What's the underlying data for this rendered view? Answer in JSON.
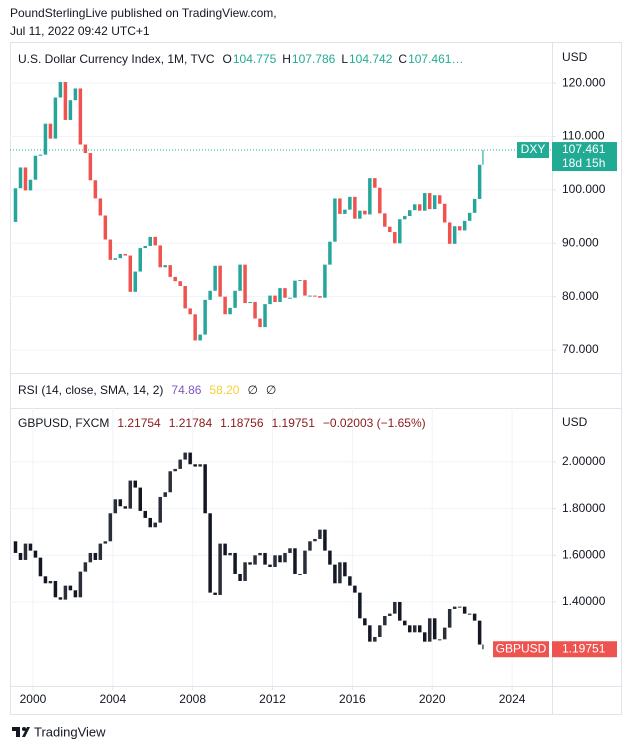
{
  "header": {
    "publisher": "PoundSterlingLive published on TradingView.com,",
    "date": "Jul 11, 2022 09:42 UTC+1"
  },
  "footer": {
    "brand": "TradingView"
  },
  "rsi": {
    "label": "RSI (14, close, SMA, 14, 2)",
    "value": 74.86,
    "sma": {
      "value": 58.2,
      "label": "58.20"
    },
    "extras": [
      "∅",
      "∅"
    ]
  },
  "chart_data": [
    {
      "type": "candlestick",
      "title": "U.S. Dollar Currency Index, 1M, TVC",
      "currency": "USD",
      "ohlc": [
        {
          "key": "O",
          "value": 104.775
        },
        {
          "key": "H",
          "value": 107.786
        },
        {
          "key": "L",
          "value": 104.742
        },
        {
          "key": "C",
          "value": 107.461
        }
      ],
      "truncation": "…",
      "x": [
        1999,
        1999.25,
        1999.5,
        1999.75,
        2000,
        2000.25,
        2000.5,
        2000.75,
        2001,
        2001.25,
        2001.5,
        2001.75,
        2002,
        2002.25,
        2002.5,
        2002.75,
        2003,
        2003.25,
        2003.5,
        2003.75,
        2004,
        2004.25,
        2004.5,
        2004.75,
        2005,
        2005.25,
        2005.5,
        2005.75,
        2006,
        2006.25,
        2006.5,
        2006.75,
        2007,
        2007.25,
        2007.5,
        2007.75,
        2008,
        2008.25,
        2008.5,
        2008.75,
        2009,
        2009.25,
        2009.5,
        2009.75,
        2010,
        2010.25,
        2010.5,
        2010.75,
        2011,
        2011.25,
        2011.5,
        2011.75,
        2012,
        2012.25,
        2012.5,
        2012.75,
        2013,
        2013.25,
        2013.5,
        2013.75,
        2014,
        2014.25,
        2014.5,
        2014.75,
        2015,
        2015.25,
        2015.5,
        2015.75,
        2016,
        2016.25,
        2016.5,
        2016.75,
        2017,
        2017.25,
        2017.5,
        2017.75,
        2018,
        2018.25,
        2018.5,
        2018.75,
        2019,
        2019.25,
        2019.5,
        2019.75,
        2020,
        2020.25,
        2020.5,
        2020.75,
        2021,
        2021.25,
        2021.5,
        2021.75,
        2022,
        2022.25,
        2022.5,
        2022.58
      ],
      "values": [
        94,
        100.3,
        104.2,
        99.9,
        101.9,
        106.4,
        106.6,
        112.4,
        109.6,
        117.3,
        120.2,
        113.1,
        116.8,
        119.0,
        108.5,
        106.9,
        101.8,
        98.4,
        95.2,
        90.7,
        86.9,
        87.2,
        88.0,
        87.7,
        80.9,
        84.7,
        89.1,
        89.5,
        91.2,
        89.6,
        85.5,
        85.9,
        83.7,
        82.9,
        82.0,
        77.8,
        76.7,
        71.8,
        72.9,
        79.4,
        81.1,
        85.8,
        80.0,
        76.7,
        77.9,
        81.1,
        86.0,
        78.8,
        79.0,
        75.9,
        74.3,
        78.6,
        80.2,
        79.0,
        81.6,
        79.8,
        79.8,
        83.0,
        83.1,
        80.2,
        80.2,
        80.1,
        79.8,
        86.0,
        90.3,
        98.4,
        95.5,
        96.3,
        98.7,
        94.6,
        96.1,
        95.4,
        102.2,
        100.4,
        95.6,
        93.1,
        92.1,
        90.0,
        94.5,
        95.1,
        96.2,
        97.3,
        96.1,
        99.4,
        96.4,
        99.0,
        97.4,
        93.9,
        89.9,
        93.2,
        92.4,
        94.2,
        95.7,
        98.3,
        104.7,
        107.461
      ],
      "up_color": "#26a69a",
      "down_color": "#ef5350",
      "legend_color": "#22ab94",
      "xlim": [
        1998.85,
        2026.0
      ],
      "ylim": [
        65.7,
        127.7
      ],
      "yticks": [
        {
          "value": 70,
          "label": "70.000"
        },
        {
          "value": 80,
          "label": "80.000"
        },
        {
          "value": 90,
          "label": "90.000"
        },
        {
          "value": 100,
          "label": "100.000"
        },
        {
          "value": 110,
          "label": "110.000"
        },
        {
          "value": 120,
          "label": "120.000"
        }
      ],
      "grid": true,
      "last": {
        "symbol": "DXY",
        "value": 107.461,
        "countdown": "18d 15h",
        "color": "#22ab94",
        "line": true
      }
    },
    {
      "type": "candlestick",
      "title": "GBPUSD, FXCM",
      "currency": "USD",
      "ohlc": [
        {
          "value": 1.21754
        },
        {
          "value": 1.21784
        },
        {
          "value": 1.18756
        },
        {
          "value": 1.19751
        }
      ],
      "change": "−0.02003 (−1.65%)",
      "x": [
        1999,
        1999.25,
        1999.5,
        1999.75,
        2000,
        2000.25,
        2000.5,
        2000.75,
        2001,
        2001.25,
        2001.5,
        2001.75,
        2002,
        2002.25,
        2002.5,
        2002.75,
        2003,
        2003.25,
        2003.5,
        2003.75,
        2004,
        2004.25,
        2004.5,
        2004.75,
        2005,
        2005.25,
        2005.5,
        2005.75,
        2006,
        2006.25,
        2006.5,
        2006.75,
        2007,
        2007.25,
        2007.5,
        2007.75,
        2008,
        2008.25,
        2008.5,
        2008.75,
        2009,
        2009.25,
        2009.5,
        2009.75,
        2010,
        2010.25,
        2010.5,
        2010.75,
        2011,
        2011.25,
        2011.5,
        2011.75,
        2012,
        2012.25,
        2012.5,
        2012.75,
        2013,
        2013.25,
        2013.5,
        2013.75,
        2014,
        2014.25,
        2014.5,
        2014.75,
        2015,
        2015.25,
        2015.5,
        2015.75,
        2016,
        2016.25,
        2016.5,
        2016.75,
        2017,
        2017.25,
        2017.5,
        2017.75,
        2018,
        2018.25,
        2018.5,
        2018.75,
        2019,
        2019.25,
        2019.5,
        2019.75,
        2020,
        2020.25,
        2020.5,
        2020.75,
        2021,
        2021.25,
        2021.5,
        2021.75,
        2022,
        2022.25,
        2022.5,
        2022.58
      ],
      "values": [
        1.66,
        1.61,
        1.58,
        1.65,
        1.62,
        1.59,
        1.51,
        1.48,
        1.49,
        1.42,
        1.41,
        1.47,
        1.45,
        1.42,
        1.53,
        1.57,
        1.61,
        1.58,
        1.65,
        1.66,
        1.78,
        1.84,
        1.81,
        1.8,
        1.92,
        1.89,
        1.79,
        1.76,
        1.72,
        1.74,
        1.85,
        1.87,
        1.96,
        1.97,
        2.01,
        2.04,
        1.99,
        1.98,
        1.99,
        1.78,
        1.44,
        1.43,
        1.65,
        1.6,
        1.61,
        1.52,
        1.49,
        1.57,
        1.56,
        1.6,
        1.61,
        1.56,
        1.55,
        1.6,
        1.57,
        1.61,
        1.63,
        1.52,
        1.52,
        1.62,
        1.66,
        1.67,
        1.71,
        1.62,
        1.56,
        1.48,
        1.57,
        1.51,
        1.47,
        1.44,
        1.33,
        1.3,
        1.23,
        1.25,
        1.3,
        1.34,
        1.35,
        1.4,
        1.32,
        1.3,
        1.27,
        1.3,
        1.27,
        1.23,
        1.33,
        1.24,
        1.24,
        1.29,
        1.37,
        1.38,
        1.38,
        1.35,
        1.35,
        1.32,
        1.21754,
        1.19751
      ],
      "up_color": "#2a2e39",
      "down_color": "#131722",
      "legend_color": "#8b1a1a",
      "xlim": [
        1998.85,
        2026.0
      ],
      "ylim": [
        1.04,
        2.231
      ],
      "xticks": [
        2000,
        2004,
        2008,
        2012,
        2016,
        2020,
        2024
      ],
      "yticks": [
        {
          "value": 1.4,
          "label": "1.40000"
        },
        {
          "value": 1.6,
          "label": "1.60000"
        },
        {
          "value": 1.8,
          "label": "1.80000"
        },
        {
          "value": 2.0,
          "label": "2.00000"
        }
      ],
      "grid": true,
      "last": {
        "symbol": "GBPUSD",
        "value": 1.19751,
        "color": "#ef5350",
        "line": false
      }
    }
  ]
}
